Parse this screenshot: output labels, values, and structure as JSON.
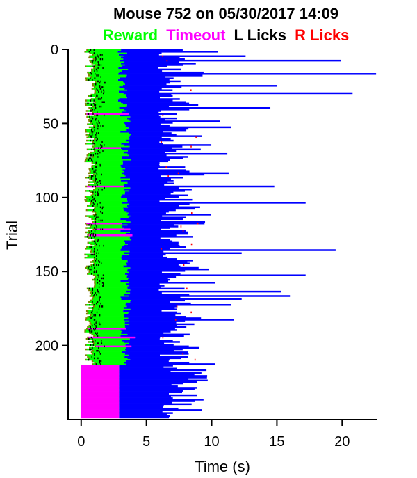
{
  "chart_data": {
    "type": "raster",
    "title": "Mouse 752 on 05/30/2017 14:09",
    "legend": [
      {
        "label": "Reward",
        "color": "#00ff00"
      },
      {
        "label": "Timeout",
        "color": "#ff00ff"
      },
      {
        "label": "L Licks",
        "color": "#000000"
      },
      {
        "label": "R Licks",
        "color": "#ff0000"
      }
    ],
    "xlabel": "Time (s)",
    "ylabel": "Trial",
    "xlim": [
      -1,
      22.7
    ],
    "ylim": [
      0,
      250
    ],
    "y_inverted": true,
    "xticks": [
      0,
      5,
      10,
      15,
      20
    ],
    "yticks": [
      0,
      50,
      100,
      150,
      200
    ],
    "n_trials": 249,
    "colors": {
      "reward": "#00ff00",
      "timeout": "#ff00ff",
      "iti": "#0000ff",
      "left_lick": "#000000",
      "right_lick": "#ff0000",
      "response": "#808000"
    },
    "timeout_trials_start": 213,
    "timeout_block_end_time": 2.9,
    "scattered_timeout_trials": [
      43,
      66,
      92,
      117,
      121,
      125,
      188,
      194,
      200
    ],
    "long_iti_trials": [
      {
        "trial": 1,
        "end": 10.5
      },
      {
        "trial": 4,
        "end": 12.6
      },
      {
        "trial": 7,
        "end": 19.9
      },
      {
        "trial": 16,
        "end": 22.6
      },
      {
        "trial": 24,
        "end": 15.0
      },
      {
        "trial": 29,
        "end": 20.8
      },
      {
        "trial": 39,
        "end": 14.5
      },
      {
        "trial": 52,
        "end": 11.5
      },
      {
        "trial": 70,
        "end": 11.2
      },
      {
        "trial": 83,
        "end": 11.3
      },
      {
        "trial": 92,
        "end": 14.8
      },
      {
        "trial": 103,
        "end": 17.2
      },
      {
        "trial": 135,
        "end": 19.5
      },
      {
        "trial": 137,
        "end": 12.3
      },
      {
        "trial": 152,
        "end": 17.2
      },
      {
        "trial": 163,
        "end": 15.3
      },
      {
        "trial": 166,
        "end": 16.0
      },
      {
        "trial": 168,
        "end": 12.3
      },
      {
        "trial": 172,
        "end": 11.5
      },
      {
        "trial": 182,
        "end": 11.7
      }
    ]
  }
}
